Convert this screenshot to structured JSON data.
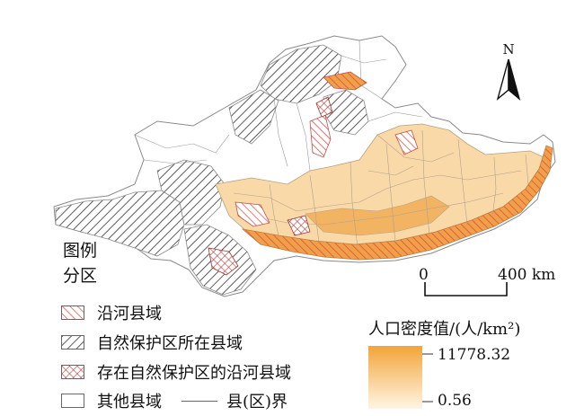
{
  "map": {
    "legend": {
      "title_line1": "图例",
      "title_line2": "分区",
      "items": [
        {
          "label": "沿河县域",
          "pattern": "diagonal-red"
        },
        {
          "label": "自然保护区所在县域",
          "pattern": "diagonal-black"
        },
        {
          "label": "存在自然保护区的沿河县域",
          "pattern": "crosshatch-red"
        },
        {
          "label": "其他县域",
          "pattern": "empty"
        }
      ],
      "boundary_label": "县(区)界"
    },
    "north_arrow": {
      "label": "N"
    },
    "scale_bar": {
      "start_label": "0",
      "end_label": "400 km"
    },
    "density": {
      "title": "人口密度值/(人/km²)",
      "max_label": "11778.32",
      "min_label": "0.56",
      "color_high": "#f3a43a",
      "color_low": "#fff3dc"
    },
    "colors": {
      "hatch_red": "#d9453b",
      "hatch_black": "#333333",
      "boundary": "#8a8a8a"
    }
  }
}
